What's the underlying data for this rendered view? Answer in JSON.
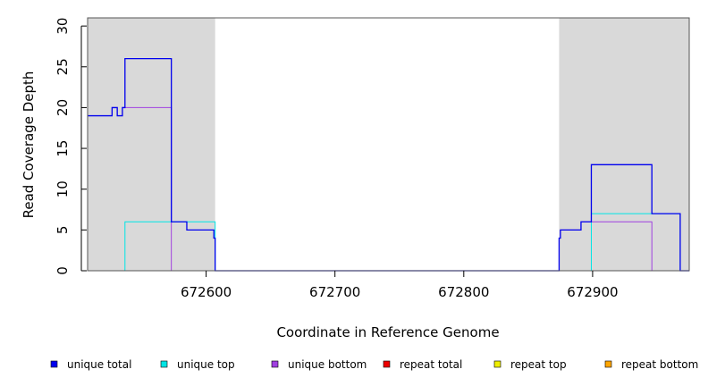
{
  "chart_data": {
    "type": "line",
    "title": "",
    "xlabel": "Coordinate in Reference Genome",
    "ylabel": "Read Coverage Depth",
    "xlim": [
      672508,
      672975
    ],
    "ylim": [
      0,
      31
    ],
    "x_ticks": [
      672600,
      672700,
      672800,
      672900
    ],
    "y_ticks": [
      0,
      5,
      10,
      15,
      20,
      25,
      30
    ],
    "shaded_regions": [
      [
        672508,
        672607
      ],
      [
        672874,
        672975
      ]
    ],
    "grid": false,
    "legend_position": "bottom",
    "series": [
      {
        "name": "unique total",
        "color": "#0000ee",
        "points": [
          [
            672508,
            19
          ],
          [
            672527,
            19
          ],
          [
            672527,
            20
          ],
          [
            672531,
            20
          ],
          [
            672531,
            19
          ],
          [
            672535,
            19
          ],
          [
            672535,
            20
          ],
          [
            672537,
            20
          ],
          [
            672537,
            26
          ],
          [
            672573,
            26
          ],
          [
            672573,
            6
          ],
          [
            672585,
            6
          ],
          [
            672585,
            5
          ],
          [
            672606,
            5
          ],
          [
            672606,
            4
          ],
          [
            672607,
            4
          ],
          [
            672607,
            0
          ],
          [
            672874,
            0
          ],
          [
            672874,
            4
          ],
          [
            672875,
            4
          ],
          [
            672875,
            5
          ],
          [
            672891,
            5
          ],
          [
            672891,
            6
          ],
          [
            672899,
            6
          ],
          [
            672899,
            13
          ],
          [
            672946,
            13
          ],
          [
            672946,
            7
          ],
          [
            672968,
            7
          ],
          [
            672968,
            0
          ],
          [
            672975,
            0
          ]
        ]
      },
      {
        "name": "unique top",
        "color": "#00e5e5",
        "points": [
          [
            672508,
            0
          ],
          [
            672537,
            0
          ],
          [
            672537,
            6
          ],
          [
            672573,
            6
          ],
          [
            672573,
            6
          ],
          [
            672607,
            6
          ],
          [
            672607,
            0
          ],
          [
            672899,
            0
          ],
          [
            672899,
            7
          ],
          [
            672946,
            7
          ],
          [
            672968,
            7
          ],
          [
            672968,
            0
          ],
          [
            672975,
            0
          ]
        ]
      },
      {
        "name": "unique bottom",
        "color": "#a040e0",
        "points": [
          [
            672508,
            19
          ],
          [
            672527,
            19
          ],
          [
            672527,
            20
          ],
          [
            672531,
            20
          ],
          [
            672531,
            19
          ],
          [
            672535,
            19
          ],
          [
            672535,
            20
          ],
          [
            672573,
            20
          ],
          [
            672573,
            0
          ],
          [
            672874,
            0
          ],
          [
            672874,
            4
          ],
          [
            672875,
            4
          ],
          [
            672875,
            5
          ],
          [
            672891,
            5
          ],
          [
            672891,
            6
          ],
          [
            672946,
            6
          ],
          [
            672946,
            0
          ],
          [
            672975,
            0
          ]
        ]
      },
      {
        "name": "repeat total",
        "color": "#ee0000",
        "points": []
      },
      {
        "name": "repeat top",
        "color": "#eeee00",
        "points": []
      },
      {
        "name": "repeat bottom",
        "color": "#ffa500",
        "points": [
          [
            672537,
            0
          ],
          [
            672573,
            0
          ],
          [
            672874,
            0
          ],
          [
            672946,
            0
          ]
        ]
      }
    ]
  }
}
